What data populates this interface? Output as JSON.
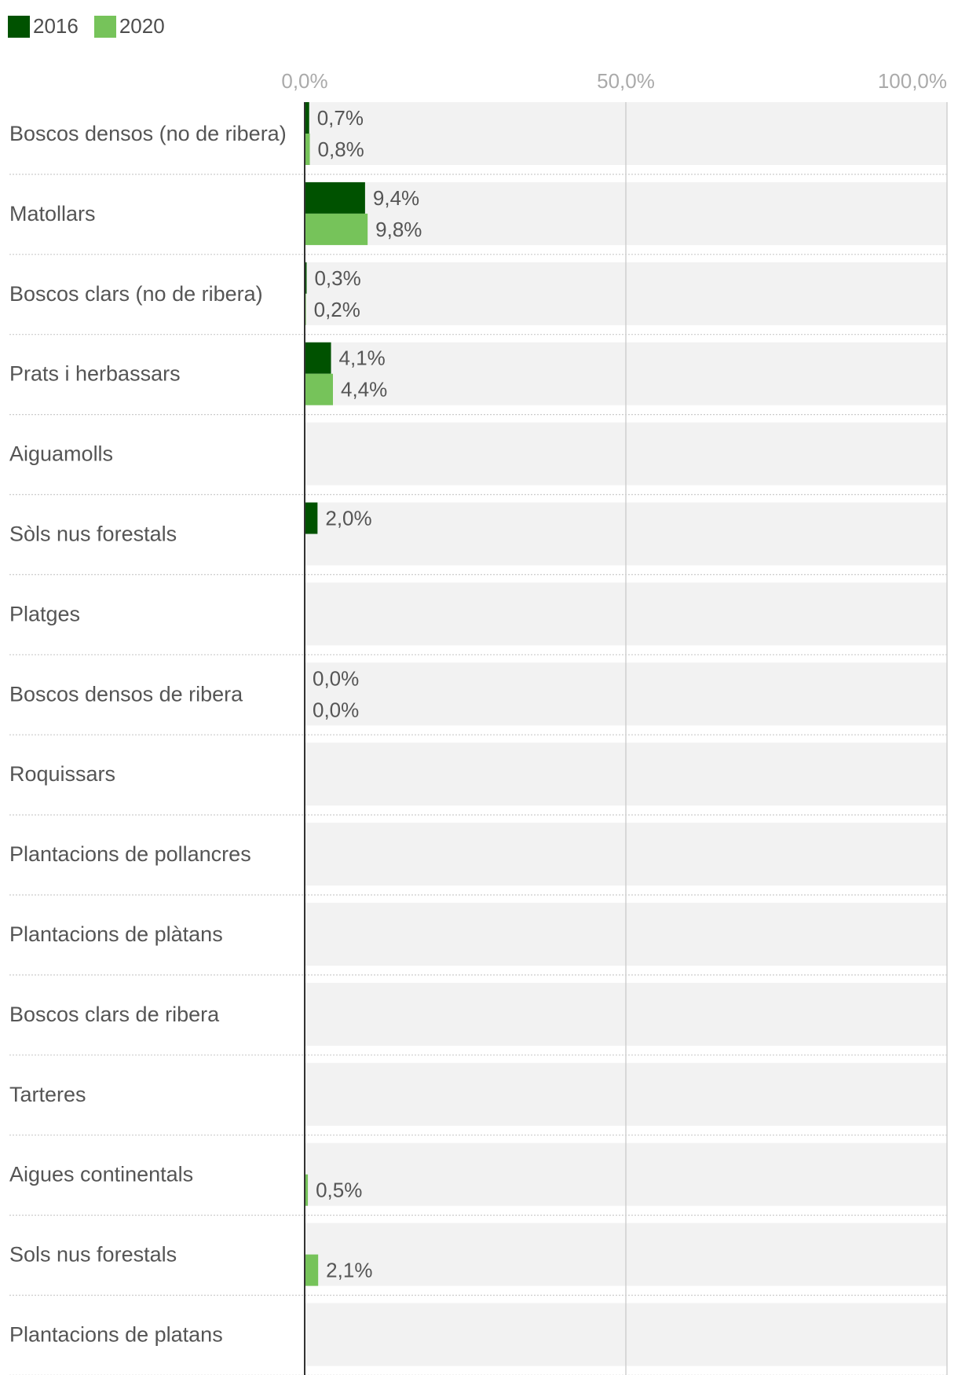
{
  "chart_data": {
    "type": "bar",
    "orientation": "horizontal",
    "categories": [
      "Boscos densos (no de ribera)",
      "Matollars",
      "Boscos clars (no de ribera)",
      "Prats i herbassars",
      "Aiguamolls",
      "Sòls nus forestals",
      "Platges",
      "Boscos densos de ribera",
      "Roquissars",
      "Plantacions de pollancres",
      "Plantacions de plàtans",
      "Boscos clars de ribera",
      "Tarteres",
      "Aigues continentals",
      "Sols nus forestals",
      "Plantacions de platans"
    ],
    "series": [
      {
        "name": "2016",
        "color": "#005200",
        "values": [
          0.7,
          9.4,
          0.3,
          4.1,
          null,
          2.0,
          null,
          0.0,
          null,
          null,
          null,
          null,
          null,
          null,
          null,
          null
        ],
        "labels": [
          "0,7%",
          "9,4%",
          "0,3%",
          "4,1%",
          "",
          "2,0%",
          "",
          "0,0%",
          "",
          "",
          "",
          "",
          "",
          "",
          "",
          ""
        ]
      },
      {
        "name": "2020",
        "color": "#76c35a",
        "values": [
          0.8,
          9.8,
          0.2,
          4.4,
          null,
          null,
          null,
          0.0,
          null,
          null,
          null,
          null,
          null,
          0.5,
          2.1,
          null
        ],
        "labels": [
          "0,8%",
          "9,8%",
          "0,2%",
          "4,4%",
          "",
          "",
          "",
          "0,0%",
          "",
          "",
          "",
          "",
          "",
          "0,5%",
          "2,1%",
          ""
        ]
      }
    ],
    "xlim": [
      0,
      100
    ],
    "ticks": [
      0,
      50,
      100
    ],
    "tick_labels": [
      "0,0%",
      "50,0%",
      "100,0%"
    ],
    "legend": "top-left",
    "grid": true
  }
}
